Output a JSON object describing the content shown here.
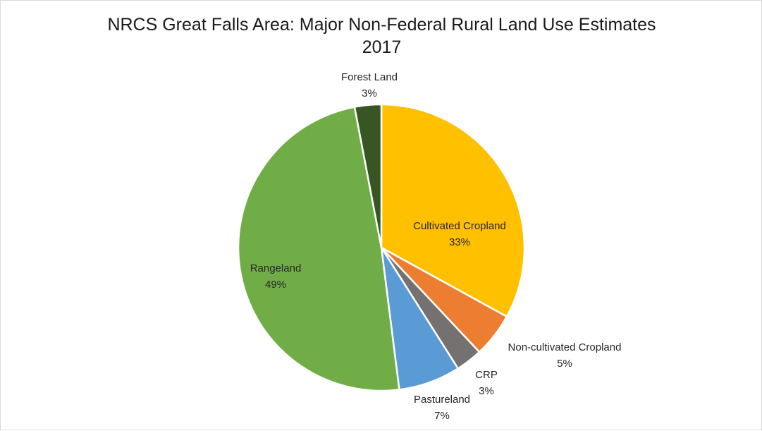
{
  "chart_data": {
    "type": "pie",
    "title": "NRCS Great Falls Area: Major Non-Federal Rural Land Use Estimates",
    "subtitle": "2017",
    "slices": [
      {
        "name": "Cultivated Cropland",
        "value": 33,
        "label": "33%",
        "color": "#FFC000"
      },
      {
        "name": "Non-cultivated Cropland",
        "value": 5,
        "label": "5%",
        "color": "#ED7D31"
      },
      {
        "name": "CRP",
        "value": 3,
        "label": "3%",
        "color": "#767171"
      },
      {
        "name": "Pastureland",
        "value": 7,
        "label": "7%",
        "color": "#5B9BD5"
      },
      {
        "name": "Rangeland",
        "value": 49,
        "label": "49%",
        "color": "#70AD47"
      },
      {
        "name": "Forest Land",
        "value": 3,
        "label": "3%",
        "color": "#375623"
      }
    ],
    "start_angle": "12 o'clock, clockwise",
    "legend": "none"
  }
}
